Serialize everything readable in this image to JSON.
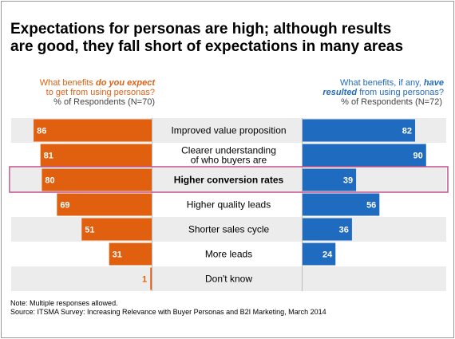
{
  "title_line1": "Expectations for personas are high; although results",
  "title_line2": "are good, they fall short of expectations in many areas",
  "left_header": {
    "line1_prefix": "What benefits ",
    "line1_emph": "do you expect",
    "line2": "to get from using personas?",
    "respondents": "% of Respondents (N=70)"
  },
  "right_header": {
    "line1_prefix": "What benefits, if any, ",
    "line1_emph": "have",
    "line2_emph": "resulted",
    "line2_suffix": " from using personas?",
    "respondents": "% of Respondents (N=72)"
  },
  "note": "Note: Multiple responses allowed.",
  "source": "Source: ITSMA Survey: Increasing Relevance with Buyer Personas and B2I Marketing, March 2014",
  "colors": {
    "expected": "#e06010",
    "resulted": "#1f6bbf",
    "row_alt": "#ececec",
    "highlight_border": "#c0508a"
  },
  "chart_data": {
    "type": "bar",
    "orientation": "horizontal-butterfly",
    "categories": [
      "Improved value proposition",
      "Clearer understanding of who buyers are",
      "Higher conversion rates",
      "Higher quality leads",
      "Shorter sales cycle",
      "More leads",
      "Don't know"
    ],
    "category_lines": [
      [
        "Improved value proposition"
      ],
      [
        "Clearer understanding",
        "of who buyers are"
      ],
      [
        "Higher conversion rates"
      ],
      [
        "Higher quality leads"
      ],
      [
        "Shorter sales cycle"
      ],
      [
        "More leads"
      ],
      [
        "Don't know"
      ]
    ],
    "series": [
      {
        "values": [
          86,
          81,
          80,
          69,
          51,
          31,
          1
        ]
      },
      {
        "values": [
          82,
          90,
          39,
          56,
          36,
          24,
          null
        ]
      }
    ],
    "highlighted_category": "Higher conversion rates",
    "xlim": [
      0,
      100
    ]
  }
}
